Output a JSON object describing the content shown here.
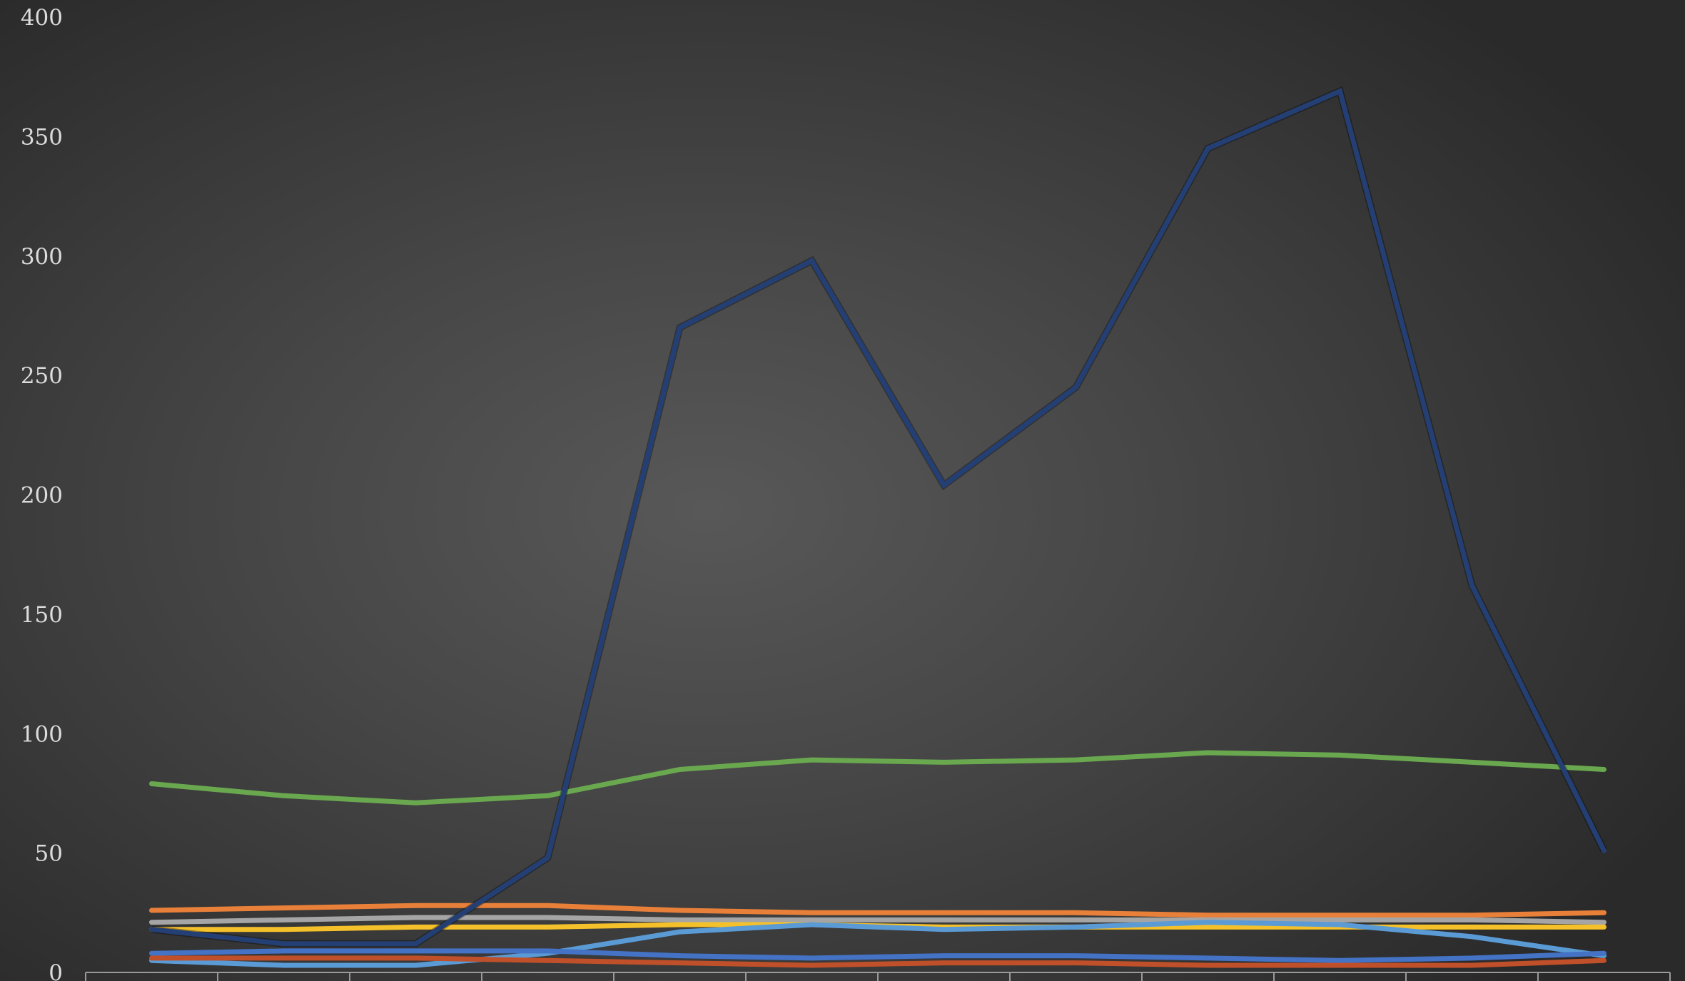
{
  "chart_data": {
    "type": "line",
    "title": "",
    "xlabel": "",
    "ylabel": "",
    "ylim": [
      0,
      400
    ],
    "y_ticks": [
      0,
      50,
      100,
      150,
      200,
      250,
      300,
      350,
      400
    ],
    "y_tick_labels": [
      "0",
      "50",
      "100",
      "150",
      "200",
      "250",
      "300",
      "350",
      "400"
    ],
    "x_count": 12,
    "grid": false,
    "legend": "none",
    "series": [
      {
        "color": "#243f73",
        "values": [
          18,
          12,
          12,
          48,
          270,
          298,
          204,
          245,
          345,
          369,
          162,
          51
        ]
      },
      {
        "color": "#6aa84f",
        "values": [
          79,
          74,
          71,
          74,
          85,
          89,
          88,
          89,
          92,
          91,
          88,
          85
        ]
      },
      {
        "color": "#e8803a",
        "values": [
          26,
          27,
          28,
          28,
          26,
          25,
          25,
          25,
          24,
          24,
          24,
          25
        ]
      },
      {
        "color": "#a5a5a5",
        "values": [
          21,
          22,
          23,
          23,
          22,
          22,
          22,
          22,
          22,
          22,
          22,
          21
        ]
      },
      {
        "color": "#f5c12a",
        "values": [
          18,
          18,
          19,
          19,
          20,
          20,
          19,
          19,
          19,
          19,
          19,
          19
        ]
      },
      {
        "color": "#5b9bd5",
        "values": [
          5,
          3,
          3,
          8,
          17,
          20,
          18,
          19,
          21,
          20,
          15,
          7
        ]
      },
      {
        "color": "#4472c4",
        "values": [
          8,
          9,
          9,
          9,
          7,
          6,
          7,
          7,
          6,
          5,
          6,
          8
        ]
      },
      {
        "color": "#c0502a",
        "values": [
          6,
          6,
          6,
          5,
          4,
          3,
          4,
          4,
          3,
          3,
          3,
          5
        ]
      }
    ]
  }
}
